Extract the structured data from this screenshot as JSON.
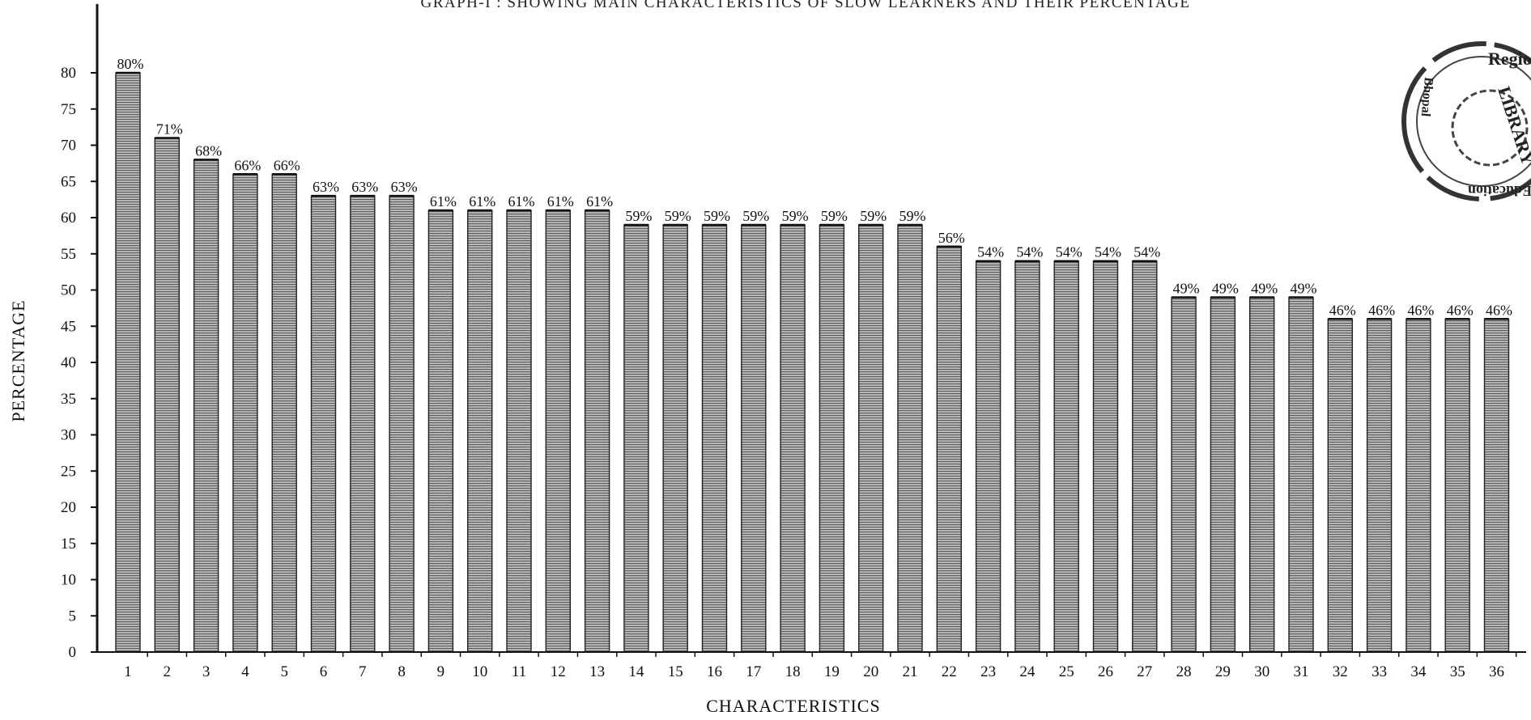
{
  "chart_data": {
    "type": "bar",
    "title": "GRAPH-I : SHOWING MAIN CHARACTERISTICS OF SLOW LEARNERS AND THEIR PERCENTAGE",
    "xlabel": "CHARACTERISTICS",
    "ylabel": "PERCENTAGE",
    "ylim": [
      0,
      80
    ],
    "yticks": [
      "0",
      "5",
      "10",
      "15",
      "20",
      "25",
      "30",
      "35",
      "40",
      "45",
      "50",
      "55",
      "60",
      "65",
      "70",
      "75",
      "80"
    ],
    "categories": [
      "1",
      "2",
      "3",
      "4",
      "5",
      "6",
      "7",
      "8",
      "9",
      "10",
      "11",
      "12",
      "13",
      "14",
      "15",
      "16",
      "17",
      "18",
      "19",
      "20",
      "21",
      "22",
      "23",
      "24",
      "25",
      "26",
      "27",
      "28",
      "29",
      "30",
      "31",
      "32",
      "33",
      "34",
      "35",
      "36"
    ],
    "values": [
      80,
      71,
      68,
      66,
      66,
      63,
      63,
      63,
      61,
      61,
      61,
      61,
      61,
      59,
      59,
      59,
      59,
      59,
      59,
      59,
      59,
      56,
      54,
      54,
      54,
      54,
      54,
      49,
      49,
      49,
      49,
      46,
      46,
      46,
      46,
      46
    ],
    "data_labels": [
      "80%",
      "71%",
      "68%",
      "66%",
      "66%",
      "63%",
      "63%",
      "63%",
      "61%",
      "61%",
      "61%",
      "61%",
      "61%",
      "59%",
      "59%",
      "59%",
      "59%",
      "59%",
      "59%",
      "59%",
      "59%",
      "56%",
      "54%",
      "54%",
      "54%",
      "54%",
      "54%",
      "49%",
      "49%",
      "49%",
      "49%",
      "46%",
      "46%",
      "46%",
      "46%",
      "46%"
    ],
    "grid": false,
    "bar_color": "#8a8a8a"
  },
  "stamp": {
    "text_top": "Regio",
    "text_center": "LIBRARY",
    "text_left": "Bhopal",
    "text_bottom": "Education"
  }
}
